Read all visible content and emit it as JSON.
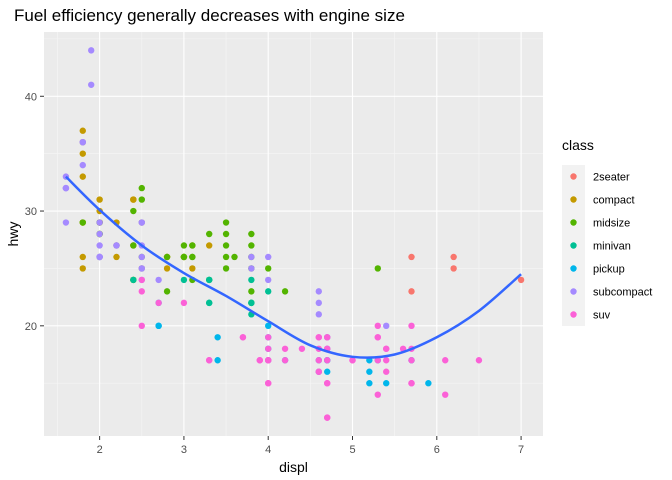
{
  "chart_data": {
    "type": "scatter",
    "title": "Fuel efficiency generally decreases with engine size",
    "xlabel": "displ",
    "ylabel": "hwy",
    "xlim": [
      1.34,
      7.26
    ],
    "ylim": [
      10.4,
      45.6
    ],
    "xticks": [
      2,
      3,
      4,
      5,
      6,
      7
    ],
    "yticks": [
      20,
      30,
      40
    ],
    "grid": true,
    "legend": {
      "title": "class",
      "position": "right"
    },
    "series": [
      {
        "name": "2seater",
        "color": "#F8766D",
        "points": [
          [
            5.7,
            26
          ],
          [
            5.7,
            23
          ],
          [
            6.2,
            26
          ],
          [
            6.2,
            25
          ],
          [
            7.0,
            24
          ]
        ]
      },
      {
        "name": "compact",
        "color": "#C49A00",
        "points": [
          [
            1.8,
            29
          ],
          [
            1.8,
            29
          ],
          [
            2.0,
            31
          ],
          [
            2.0,
            30
          ],
          [
            2.8,
            26
          ],
          [
            2.8,
            26
          ],
          [
            3.1,
            27
          ],
          [
            1.8,
            26
          ],
          [
            1.8,
            25
          ],
          [
            2.0,
            28
          ],
          [
            2.8,
            25
          ],
          [
            3.1,
            25
          ],
          [
            2.0,
            29
          ],
          [
            2.2,
            27
          ],
          [
            2.4,
            31
          ],
          [
            1.8,
            36
          ],
          [
            1.8,
            35
          ],
          [
            1.8,
            33
          ],
          [
            1.8,
            37
          ],
          [
            2.5,
            29
          ],
          [
            3.0,
            26
          ],
          [
            3.3,
            27
          ],
          [
            2.4,
            27
          ],
          [
            2.5,
            25
          ],
          [
            3.0,
            26
          ],
          [
            2.2,
            29
          ],
          [
            2.2,
            26
          ],
          [
            2.4,
            31
          ],
          [
            2.0,
            29
          ]
        ]
      },
      {
        "name": "midsize",
        "color": "#53B400",
        "points": [
          [
            2.8,
            26
          ],
          [
            3.1,
            27
          ],
          [
            4.2,
            23
          ],
          [
            2.4,
            24
          ],
          [
            2.4,
            24
          ],
          [
            3.1,
            26
          ],
          [
            3.5,
            29
          ],
          [
            3.6,
            26
          ],
          [
            3.3,
            24
          ],
          [
            3.3,
            28
          ],
          [
            3.8,
            28
          ],
          [
            3.8,
            27
          ],
          [
            3.8,
            26
          ],
          [
            3.5,
            26
          ],
          [
            2.4,
            27
          ],
          [
            2.4,
            30
          ],
          [
            2.5,
            32
          ],
          [
            2.5,
            31
          ],
          [
            3.0,
            26
          ],
          [
            3.5,
            25
          ],
          [
            5.3,
            25
          ],
          [
            2.0,
            26
          ],
          [
            2.0,
            29
          ],
          [
            2.0,
            28
          ],
          [
            2.8,
            23
          ],
          [
            3.1,
            24
          ],
          [
            1.8,
            29
          ],
          [
            2.0,
            28
          ],
          [
            2.5,
            26
          ],
          [
            3.0,
            26
          ],
          [
            3.5,
            28
          ],
          [
            3.8,
            23
          ],
          [
            4.0,
            25
          ],
          [
            3.8,
            22
          ],
          [
            3.0,
            27
          ],
          [
            3.5,
            27
          ],
          [
            3.1,
            26
          ],
          [
            3.8,
            25
          ]
        ]
      },
      {
        "name": "minivan",
        "color": "#00C094",
        "points": [
          [
            2.4,
            24
          ],
          [
            3.0,
            24
          ],
          [
            3.3,
            22
          ],
          [
            3.3,
            22
          ],
          [
            3.3,
            24
          ],
          [
            3.8,
            22
          ],
          [
            3.8,
            22
          ],
          [
            3.8,
            21
          ],
          [
            4.0,
            23
          ],
          [
            3.3,
            24
          ],
          [
            3.8,
            24
          ]
        ]
      },
      {
        "name": "pickup",
        "color": "#00B6EB",
        "points": [
          [
            2.7,
            20
          ],
          [
            2.7,
            20
          ],
          [
            2.7,
            22
          ],
          [
            3.4,
            17
          ],
          [
            3.4,
            19
          ],
          [
            4.0,
            17
          ],
          [
            4.0,
            19
          ],
          [
            4.2,
            17
          ],
          [
            4.6,
            17
          ],
          [
            4.6,
            16
          ],
          [
            4.7,
            16
          ],
          [
            4.7,
            17
          ],
          [
            4.7,
            18
          ],
          [
            5.2,
            16
          ],
          [
            5.2,
            15
          ],
          [
            5.7,
            17
          ],
          [
            5.9,
            15
          ],
          [
            4.7,
            17
          ],
          [
            4.7,
            19
          ],
          [
            5.3,
            17
          ],
          [
            5.2,
            17
          ],
          [
            5.4,
            15
          ],
          [
            4.0,
            20
          ],
          [
            4.0,
            18
          ]
        ]
      },
      {
        "name": "subcompact",
        "color": "#A58AFF",
        "points": [
          [
            3.8,
            26
          ],
          [
            3.8,
            25
          ],
          [
            4.0,
            24
          ],
          [
            4.0,
            26
          ],
          [
            4.6,
            23
          ],
          [
            4.6,
            22
          ],
          [
            4.6,
            21
          ],
          [
            5.4,
            20
          ],
          [
            1.6,
            33
          ],
          [
            1.6,
            32
          ],
          [
            1.6,
            32
          ],
          [
            1.6,
            29
          ],
          [
            1.6,
            32
          ],
          [
            1.8,
            34
          ],
          [
            1.8,
            36
          ],
          [
            1.8,
            36
          ],
          [
            2.0,
            29
          ],
          [
            1.9,
            44
          ],
          [
            1.9,
            41
          ],
          [
            2.0,
            26
          ],
          [
            2.0,
            26
          ],
          [
            2.0,
            27
          ],
          [
            2.5,
            24
          ],
          [
            2.5,
            26
          ],
          [
            2.2,
            27
          ],
          [
            2.5,
            25
          ],
          [
            2.7,
            24
          ],
          [
            2.2,
            27
          ],
          [
            2.5,
            29
          ],
          [
            2.0,
            26
          ],
          [
            2.5,
            27
          ],
          [
            2.5,
            29
          ],
          [
            2.0,
            26
          ],
          [
            2.0,
            28
          ],
          [
            2.5,
            25
          ]
        ]
      },
      {
        "name": "suv",
        "color": "#FB61D7",
        "points": [
          [
            5.7,
            20
          ],
          [
            5.3,
            20
          ],
          [
            5.3,
            19
          ],
          [
            5.7,
            15
          ],
          [
            6.5,
            17
          ],
          [
            5.3,
            19
          ],
          [
            5.3,
            17
          ],
          [
            4.7,
            12
          ],
          [
            4.7,
            12
          ],
          [
            4.7,
            17
          ],
          [
            4.7,
            19
          ],
          [
            4.7,
            18
          ],
          [
            5.7,
            17
          ],
          [
            6.1,
            14
          ],
          [
            4.0,
            19
          ],
          [
            4.0,
            15
          ],
          [
            4.6,
            18
          ],
          [
            5.0,
            17
          ],
          [
            4.2,
            18
          ],
          [
            4.4,
            18
          ],
          [
            4.6,
            17
          ],
          [
            5.4,
            18
          ],
          [
            5.4,
            17
          ],
          [
            4.0,
            17
          ],
          [
            4.0,
            15
          ],
          [
            4.6,
            19
          ],
          [
            5.0,
            17
          ],
          [
            5.4,
            16
          ],
          [
            5.4,
            18
          ],
          [
            4.2,
            17
          ],
          [
            3.3,
            17
          ],
          [
            3.7,
            19
          ],
          [
            4.7,
            19
          ],
          [
            5.7,
            18
          ],
          [
            6.1,
            17
          ],
          [
            4.6,
            19
          ],
          [
            4.6,
            16
          ],
          [
            4.7,
            15
          ],
          [
            4.0,
            17
          ],
          [
            2.5,
            23
          ],
          [
            2.5,
            20
          ],
          [
            2.7,
            22
          ],
          [
            2.5,
            24
          ],
          [
            3.0,
            22
          ],
          [
            4.0,
            18
          ],
          [
            3.9,
            17
          ],
          [
            5.3,
            14
          ],
          [
            5.6,
            18
          ],
          [
            5.7,
            15
          ],
          [
            4.0,
            17
          ],
          [
            4.6,
            16
          ],
          [
            4.7,
            18
          ],
          [
            3.3,
            17
          ],
          [
            3.7,
            19
          ],
          [
            4.7,
            15
          ],
          [
            3.9,
            17
          ]
        ]
      }
    ],
    "smooth_line": {
      "color": "#3366FF",
      "points": [
        [
          1.6,
          33.0
        ],
        [
          2.0,
          30.1
        ],
        [
          2.5,
          27.0
        ],
        [
          3.0,
          24.6
        ],
        [
          3.5,
          22.6
        ],
        [
          4.0,
          20.4
        ],
        [
          4.5,
          18.3
        ],
        [
          5.0,
          17.3
        ],
        [
          5.5,
          17.5
        ],
        [
          6.0,
          19.0
        ],
        [
          6.5,
          21.3
        ],
        [
          7.0,
          24.5
        ]
      ]
    }
  }
}
